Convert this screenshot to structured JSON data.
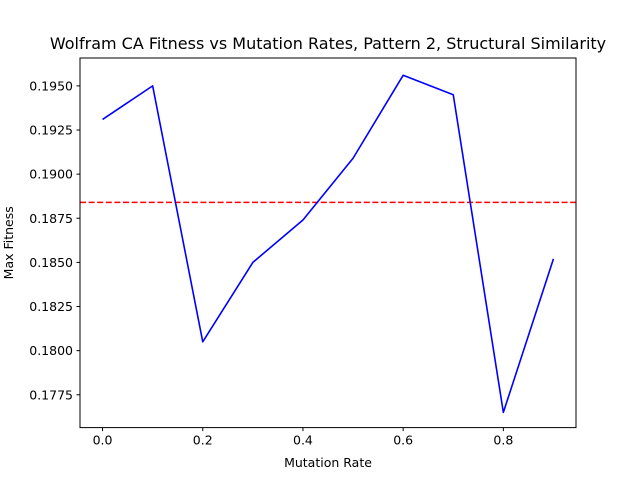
{
  "chart_data": {
    "type": "line",
    "title": "Wolfram CA Fitness vs Mutation Rates, Pattern 2, Structural Similarity",
    "xlabel": "Mutation Rate",
    "ylabel": "Max Fitness",
    "xlim": [
      -0.045,
      0.945
    ],
    "ylim": [
      0.17564,
      0.19658
    ],
    "xticks": [
      0.0,
      0.2,
      0.4,
      0.6,
      0.8
    ],
    "xtick_labels": [
      "0.0",
      "0.2",
      "0.4",
      "0.6",
      "0.8"
    ],
    "yticks": [
      0.1775,
      0.18,
      0.1825,
      0.185,
      0.1875,
      0.19,
      0.1925,
      0.195
    ],
    "ytick_labels": [
      "0.1775",
      "0.1800",
      "0.1825",
      "0.1850",
      "0.1875",
      "0.1900",
      "0.1925",
      "0.1950"
    ],
    "grid": false,
    "series": [
      {
        "x": [
          0.0,
          0.1,
          0.2,
          0.3,
          0.4,
          0.5,
          0.6,
          0.7,
          0.8,
          0.9
        ],
        "y": [
          0.1931,
          0.195,
          0.1805,
          0.185,
          0.1874,
          0.1909,
          0.1956,
          0.1945,
          0.1765,
          0.1852
        ],
        "color": "#0000ff",
        "style": "solid"
      }
    ],
    "hlines": [
      {
        "y": 0.1884,
        "color": "#ff0000",
        "style": "dashed"
      }
    ]
  }
}
